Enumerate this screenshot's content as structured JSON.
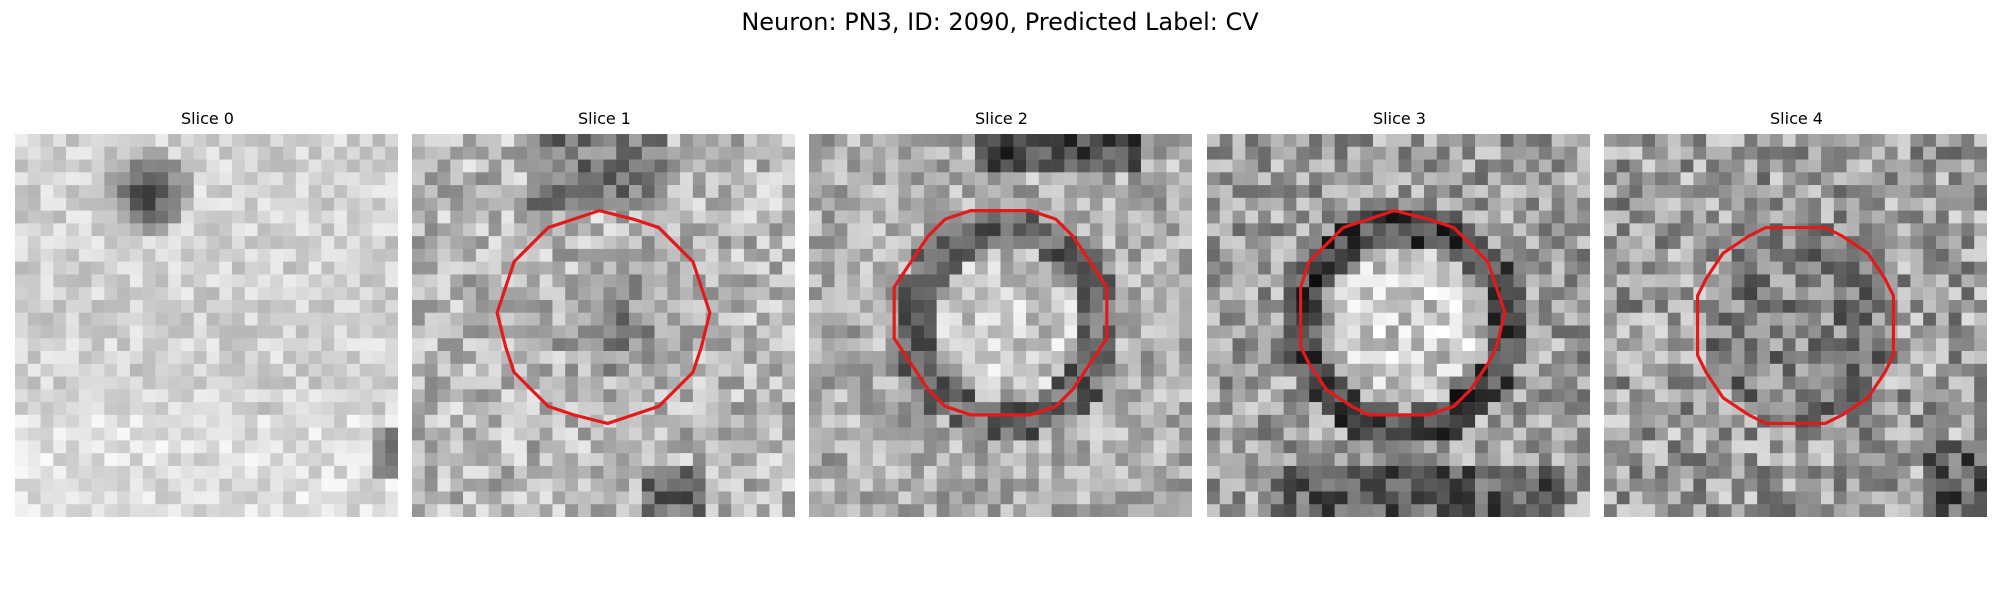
{
  "figure": {
    "title": "Neuron: PN3, ID: 2090, Predicted Label: CV"
  },
  "slices": [
    {
      "label": "Slice 0",
      "pattern": "bright-blob-top",
      "has_contour": false
    },
    {
      "label": "Slice 1",
      "pattern": "dark-center",
      "has_contour": true
    },
    {
      "label": "Slice 2",
      "pattern": "ring",
      "has_contour": true
    },
    {
      "label": "Slice 3",
      "pattern": "strong-ring",
      "has_contour": true
    },
    {
      "label": "Slice 4",
      "pattern": "noisy-dark",
      "has_contour": true
    }
  ],
  "colors": {
    "contour": "#e31a1c",
    "background": "#ffffff"
  }
}
